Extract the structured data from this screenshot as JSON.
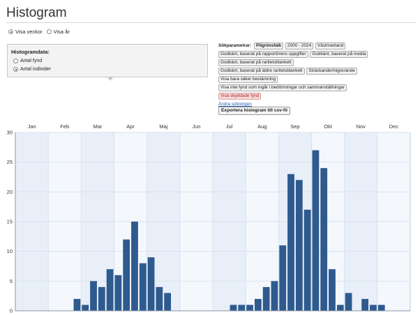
{
  "page": {
    "title": "Histogram"
  },
  "view_toggle": {
    "options": [
      {
        "label": "Visa veckor",
        "selected": true
      },
      {
        "label": "Visa år",
        "selected": false
      }
    ]
  },
  "histogram_panel": {
    "title": "Histogramdata:",
    "options": [
      {
        "label": "Antal fynd",
        "selected": false
      },
      {
        "label": "Antal individer",
        "selected": true
      }
    ]
  },
  "search_params": {
    "label": "Sökparametrar:",
    "tags": [
      {
        "text": "Pilgrimsfalk",
        "style": "bold"
      },
      {
        "text": "2000 - 2024",
        "style": "normal"
      },
      {
        "text": "Västmanland",
        "style": "normal"
      },
      {
        "text": "Godkänt, baserat på rapportörens uppgifter",
        "style": "normal"
      },
      {
        "text": "Godkänt, baserat på media",
        "style": "normal"
      },
      {
        "text": "Godkänt, baserat på raritetsblankett",
        "style": "normal"
      },
      {
        "text": "Godkänt, baserat på äldre raritetsblankett",
        "style": "normal"
      },
      {
        "text": "Sträckande/migrerande",
        "style": "normal"
      },
      {
        "text": "Visa bara säker bestämning",
        "style": "normal"
      },
      {
        "text": "Visa inte fynd som ingår i bedömningar och sammanställningar",
        "style": "normal"
      },
      {
        "text": "Visa skyddade fynd",
        "style": "red"
      }
    ],
    "change_link": "Ändra sökningen",
    "export_button": "Exportera histogram till csv-fil"
  },
  "colors": {
    "bar": "#2e5a8e",
    "plot_bg": "#f4f8fd",
    "grid": "#d6e2f0"
  },
  "chart_data": {
    "type": "bar",
    "months": [
      "Jan",
      "Feb",
      "Mar",
      "Apr",
      "Maj",
      "Jun",
      "Jul",
      "Aug",
      "Sep",
      "Okt",
      "Nov",
      "Dec"
    ],
    "ylim": [
      0,
      30
    ],
    "y_ticks": [
      0,
      5,
      10,
      15,
      20,
      25,
      30
    ],
    "weekly_values": [
      0,
      0,
      0,
      0,
      0,
      0,
      0,
      2,
      1,
      5,
      4,
      7,
      6,
      12,
      15,
      8,
      9,
      4,
      3,
      0,
      0,
      0,
      0,
      0,
      0,
      0,
      1,
      1,
      1,
      2,
      4,
      5,
      11,
      23,
      22,
      17,
      27,
      24,
      7,
      1,
      3,
      0,
      2,
      1,
      1,
      0,
      0,
      0
    ]
  }
}
